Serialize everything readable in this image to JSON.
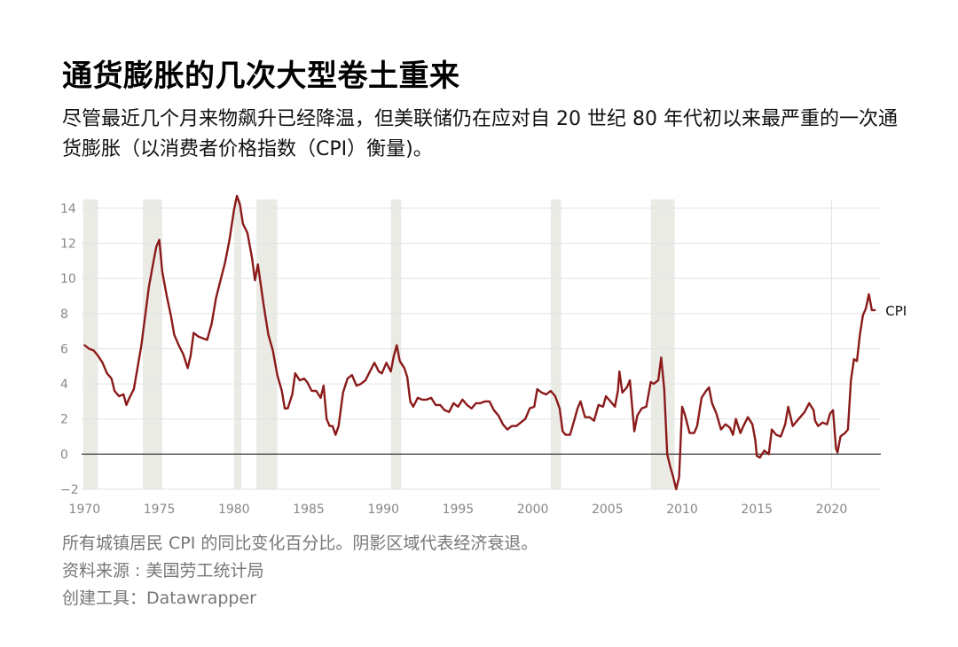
{
  "header": {
    "title": "通货膨胀的几次大型卷土重来",
    "subtitle": "尽管最近几个月来物飙升已经降温，但美联储仍在应对自 20 世纪 80 年代初以来最严重的一次通货膨胀（以消费者价格指数（CPI）衡量)。"
  },
  "notes": {
    "description": "所有城镇居民 CPI 的同比变化百分比。阴影区域代表经济衰退。",
    "source": "资料来源 : 美国劳工统计局",
    "tool": "创建工具：Datawrapper"
  },
  "colors": {
    "line": "#8b1a1a",
    "recession": "#ebebe6",
    "grid": "#e2e2e2",
    "zero_line": "#333333",
    "tick_text": "#888888"
  },
  "chart_data": {
    "type": "line",
    "title": "",
    "xlabel": "",
    "ylabel": "",
    "xlim": [
      1969.8,
      2023.3
    ],
    "ylim": [
      -2,
      14.5
    ],
    "x_ticks": [
      1970,
      1975,
      1980,
      1985,
      1990,
      1995,
      2000,
      2005,
      2010,
      2015,
      2020
    ],
    "y_ticks": [
      -2,
      0,
      2,
      4,
      6,
      8,
      10,
      12,
      14
    ],
    "grid": true,
    "legend": "series label at end of line",
    "recessions": [
      [
        1969.9,
        1970.9
      ],
      [
        1973.9,
        1975.2
      ],
      [
        1980.0,
        1980.5
      ],
      [
        1981.5,
        1982.9
      ],
      [
        1990.5,
        1991.2
      ],
      [
        2001.2,
        2001.9
      ],
      [
        2007.9,
        2009.5
      ]
    ],
    "series": [
      {
        "name": "CPI",
        "points": [
          [
            1970.0,
            6.2
          ],
          [
            1970.3,
            6.0
          ],
          [
            1970.6,
            5.9
          ],
          [
            1970.9,
            5.6
          ],
          [
            1971.2,
            5.2
          ],
          [
            1971.5,
            4.6
          ],
          [
            1971.8,
            4.3
          ],
          [
            1972.0,
            3.6
          ],
          [
            1972.3,
            3.3
          ],
          [
            1972.6,
            3.4
          ],
          [
            1972.8,
            2.8
          ],
          [
            1973.0,
            3.2
          ],
          [
            1973.3,
            3.7
          ],
          [
            1973.6,
            5.2
          ],
          [
            1973.8,
            6.2
          ],
          [
            1974.0,
            7.5
          ],
          [
            1974.3,
            9.5
          ],
          [
            1974.6,
            10.9
          ],
          [
            1974.8,
            11.8
          ],
          [
            1975.0,
            12.2
          ],
          [
            1975.2,
            10.4
          ],
          [
            1975.5,
            9.0
          ],
          [
            1975.8,
            7.8
          ],
          [
            1976.0,
            6.8
          ],
          [
            1976.3,
            6.2
          ],
          [
            1976.6,
            5.7
          ],
          [
            1976.9,
            4.9
          ],
          [
            1977.1,
            5.6
          ],
          [
            1977.3,
            6.9
          ],
          [
            1977.6,
            6.7
          ],
          [
            1977.9,
            6.6
          ],
          [
            1978.2,
            6.5
          ],
          [
            1978.5,
            7.4
          ],
          [
            1978.8,
            8.9
          ],
          [
            1979.1,
            9.9
          ],
          [
            1979.4,
            10.9
          ],
          [
            1979.7,
            12.2
          ],
          [
            1980.0,
            13.9
          ],
          [
            1980.2,
            14.7
          ],
          [
            1980.4,
            14.2
          ],
          [
            1980.6,
            13.1
          ],
          [
            1980.9,
            12.6
          ],
          [
            1981.2,
            11.2
          ],
          [
            1981.4,
            9.9
          ],
          [
            1981.6,
            10.8
          ],
          [
            1981.8,
            9.6
          ],
          [
            1982.0,
            8.4
          ],
          [
            1982.3,
            6.8
          ],
          [
            1982.6,
            5.9
          ],
          [
            1982.9,
            4.5
          ],
          [
            1983.2,
            3.6
          ],
          [
            1983.4,
            2.6
          ],
          [
            1983.6,
            2.6
          ],
          [
            1983.9,
            3.4
          ],
          [
            1984.1,
            4.6
          ],
          [
            1984.4,
            4.2
          ],
          [
            1984.7,
            4.3
          ],
          [
            1984.9,
            4.1
          ],
          [
            1985.2,
            3.6
          ],
          [
            1985.5,
            3.6
          ],
          [
            1985.8,
            3.2
          ],
          [
            1986.0,
            3.9
          ],
          [
            1986.2,
            2.0
          ],
          [
            1986.4,
            1.6
          ],
          [
            1986.6,
            1.6
          ],
          [
            1986.8,
            1.1
          ],
          [
            1987.0,
            1.6
          ],
          [
            1987.3,
            3.5
          ],
          [
            1987.6,
            4.3
          ],
          [
            1987.9,
            4.5
          ],
          [
            1988.2,
            3.9
          ],
          [
            1988.5,
            4.0
          ],
          [
            1988.8,
            4.2
          ],
          [
            1989.1,
            4.7
          ],
          [
            1989.4,
            5.2
          ],
          [
            1989.7,
            4.7
          ],
          [
            1989.9,
            4.6
          ],
          [
            1990.2,
            5.2
          ],
          [
            1990.5,
            4.7
          ],
          [
            1990.7,
            5.6
          ],
          [
            1990.9,
            6.2
          ],
          [
            1991.1,
            5.3
          ],
          [
            1991.4,
            4.9
          ],
          [
            1991.6,
            4.4
          ],
          [
            1991.8,
            3.0
          ],
          [
            1992.0,
            2.7
          ],
          [
            1992.3,
            3.2
          ],
          [
            1992.6,
            3.1
          ],
          [
            1992.9,
            3.1
          ],
          [
            1993.2,
            3.2
          ],
          [
            1993.5,
            2.8
          ],
          [
            1993.8,
            2.8
          ],
          [
            1994.1,
            2.5
          ],
          [
            1994.4,
            2.4
          ],
          [
            1994.7,
            2.9
          ],
          [
            1995.0,
            2.7
          ],
          [
            1995.3,
            3.1
          ],
          [
            1995.6,
            2.8
          ],
          [
            1995.9,
            2.6
          ],
          [
            1996.2,
            2.9
          ],
          [
            1996.5,
            2.9
          ],
          [
            1996.8,
            3.0
          ],
          [
            1997.1,
            3.0
          ],
          [
            1997.4,
            2.5
          ],
          [
            1997.7,
            2.2
          ],
          [
            1998.0,
            1.7
          ],
          [
            1998.3,
            1.4
          ],
          [
            1998.6,
            1.6
          ],
          [
            1998.9,
            1.6
          ],
          [
            1999.2,
            1.8
          ],
          [
            1999.5,
            2.0
          ],
          [
            1999.8,
            2.6
          ],
          [
            2000.1,
            2.7
          ],
          [
            2000.3,
            3.7
          ],
          [
            2000.6,
            3.5
          ],
          [
            2000.9,
            3.4
          ],
          [
            2001.2,
            3.6
          ],
          [
            2001.5,
            3.3
          ],
          [
            2001.8,
            2.6
          ],
          [
            2002.0,
            1.3
          ],
          [
            2002.2,
            1.1
          ],
          [
            2002.5,
            1.1
          ],
          [
            2002.8,
            2.0
          ],
          [
            2003.0,
            2.6
          ],
          [
            2003.2,
            3.0
          ],
          [
            2003.5,
            2.1
          ],
          [
            2003.8,
            2.1
          ],
          [
            2004.1,
            1.9
          ],
          [
            2004.4,
            2.8
          ],
          [
            2004.7,
            2.7
          ],
          [
            2004.9,
            3.3
          ],
          [
            2005.2,
            3.0
          ],
          [
            2005.5,
            2.7
          ],
          [
            2005.7,
            3.6
          ],
          [
            2005.8,
            4.7
          ],
          [
            2006.0,
            3.5
          ],
          [
            2006.3,
            3.8
          ],
          [
            2006.5,
            4.2
          ],
          [
            2006.8,
            1.3
          ],
          [
            2007.0,
            2.2
          ],
          [
            2007.3,
            2.6
          ],
          [
            2007.6,
            2.7
          ],
          [
            2007.9,
            4.1
          ],
          [
            2008.1,
            4.0
          ],
          [
            2008.4,
            4.2
          ],
          [
            2008.6,
            5.5
          ],
          [
            2008.8,
            3.7
          ],
          [
            2009.0,
            0.0
          ],
          [
            2009.2,
            -0.7
          ],
          [
            2009.4,
            -1.3
          ],
          [
            2009.6,
            -2.0
          ],
          [
            2009.8,
            -1.3
          ],
          [
            2010.0,
            2.7
          ],
          [
            2010.2,
            2.2
          ],
          [
            2010.5,
            1.2
          ],
          [
            2010.8,
            1.2
          ],
          [
            2011.0,
            1.6
          ],
          [
            2011.3,
            3.2
          ],
          [
            2011.6,
            3.6
          ],
          [
            2011.8,
            3.8
          ],
          [
            2012.0,
            2.9
          ],
          [
            2012.3,
            2.3
          ],
          [
            2012.6,
            1.4
          ],
          [
            2012.9,
            1.7
          ],
          [
            2013.2,
            1.5
          ],
          [
            2013.4,
            1.1
          ],
          [
            2013.6,
            2.0
          ],
          [
            2013.9,
            1.2
          ],
          [
            2014.1,
            1.6
          ],
          [
            2014.4,
            2.1
          ],
          [
            2014.7,
            1.7
          ],
          [
            2014.9,
            0.8
          ],
          [
            2015.0,
            -0.1
          ],
          [
            2015.2,
            -0.2
          ],
          [
            2015.5,
            0.2
          ],
          [
            2015.8,
            0.0
          ],
          [
            2016.0,
            1.4
          ],
          [
            2016.3,
            1.1
          ],
          [
            2016.6,
            1.0
          ],
          [
            2016.9,
            1.7
          ],
          [
            2017.1,
            2.7
          ],
          [
            2017.4,
            1.6
          ],
          [
            2017.7,
            1.9
          ],
          [
            2017.9,
            2.1
          ],
          [
            2018.2,
            2.4
          ],
          [
            2018.5,
            2.9
          ],
          [
            2018.8,
            2.5
          ],
          [
            2018.9,
            1.9
          ],
          [
            2019.1,
            1.6
          ],
          [
            2019.4,
            1.8
          ],
          [
            2019.7,
            1.7
          ],
          [
            2019.9,
            2.3
          ],
          [
            2020.1,
            2.5
          ],
          [
            2020.3,
            0.3
          ],
          [
            2020.4,
            0.1
          ],
          [
            2020.6,
            1.0
          ],
          [
            2020.9,
            1.2
          ],
          [
            2021.1,
            1.4
          ],
          [
            2021.3,
            4.2
          ],
          [
            2021.5,
            5.4
          ],
          [
            2021.7,
            5.3
          ],
          [
            2021.9,
            6.8
          ],
          [
            2022.1,
            7.9
          ],
          [
            2022.3,
            8.3
          ],
          [
            2022.5,
            9.1
          ],
          [
            2022.7,
            8.2
          ],
          [
            2022.9,
            8.2
          ]
        ]
      }
    ]
  }
}
